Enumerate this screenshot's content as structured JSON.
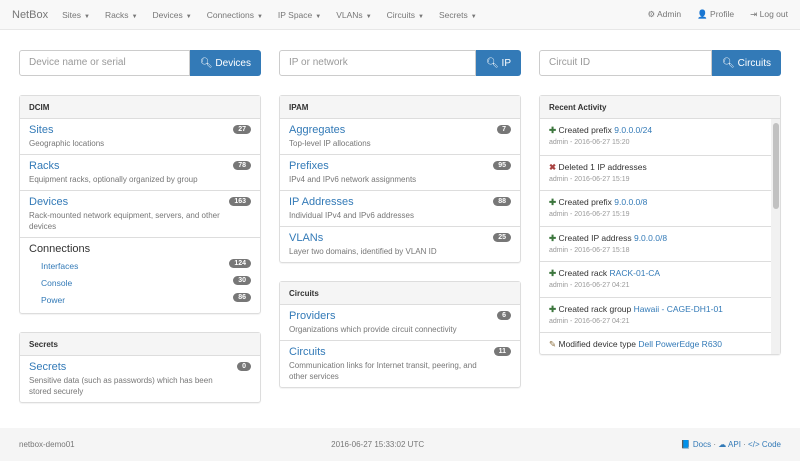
{
  "nav": {
    "brand": "NetBox",
    "items": [
      "Sites",
      "Racks",
      "Devices",
      "Connections",
      "IP Space",
      "VLANs",
      "Circuits",
      "Secrets"
    ],
    "right": [
      {
        "icon": "gear-icon",
        "glyph": "⚙",
        "label": "Admin"
      },
      {
        "icon": "user-icon",
        "glyph": "👤",
        "label": "Profile"
      },
      {
        "icon": "logout-icon",
        "glyph": "⇥",
        "label": "Log out"
      }
    ]
  },
  "searches": [
    {
      "placeholder": "Device name or serial",
      "button": "Devices"
    },
    {
      "placeholder": "IP or network",
      "button": "IP"
    },
    {
      "placeholder": "Circuit ID",
      "button": "Circuits"
    }
  ],
  "dcim": {
    "title": "DCIM",
    "items": [
      {
        "label": "Sites",
        "desc": "Geographic locations",
        "count": "27"
      },
      {
        "label": "Racks",
        "desc": "Equipment racks, optionally organized by group",
        "count": "78"
      },
      {
        "label": "Devices",
        "desc": "Rack-mounted network equipment, servers, and other devices",
        "count": "163"
      }
    ],
    "connections": {
      "label": "Connections",
      "items": [
        {
          "label": "Interfaces",
          "count": "124"
        },
        {
          "label": "Console",
          "count": "30"
        },
        {
          "label": "Power",
          "count": "86"
        }
      ]
    }
  },
  "secrets": {
    "title": "Secrets",
    "items": [
      {
        "label": "Secrets",
        "desc": "Sensitive data (such as passwords) which has been stored securely",
        "count": "0"
      }
    ]
  },
  "ipam": {
    "title": "IPAM",
    "items": [
      {
        "label": "Aggregates",
        "desc": "Top-level IP allocations",
        "count": "7"
      },
      {
        "label": "Prefixes",
        "desc": "IPv4 and IPv6 network assignments",
        "count": "95"
      },
      {
        "label": "IP Addresses",
        "desc": "Individual IPv4 and IPv6 addresses",
        "count": "88"
      },
      {
        "label": "VLANs",
        "desc": "Layer two domains, identified by VLAN ID",
        "count": "25"
      }
    ]
  },
  "circuits": {
    "title": "Circuits",
    "items": [
      {
        "label": "Providers",
        "desc": "Organizations which provide circuit connectivity",
        "count": "6"
      },
      {
        "label": "Circuits",
        "desc": "Communication links for Internet transit, peering, and other services",
        "count": "11"
      }
    ]
  },
  "activity": {
    "title": "Recent Activity",
    "items": [
      {
        "type": "plus",
        "text": "Created prefix",
        "link": "9.0.0.0/24",
        "meta": "admin - 2016-06-27 15:20"
      },
      {
        "type": "x",
        "text": "Deleted 1 IP addresses",
        "link": "",
        "meta": "admin - 2016-06-27 15:19"
      },
      {
        "type": "plus",
        "text": "Created prefix",
        "link": "9.0.0.0/8",
        "meta": "admin - 2016-06-27 15:19"
      },
      {
        "type": "plus",
        "text": "Created IP address",
        "link": "9.0.0.0/8",
        "meta": "admin - 2016-06-27 15:18"
      },
      {
        "type": "plus",
        "text": "Created rack",
        "link": "RACK-01-CA",
        "meta": "admin - 2016-06-27 04:21"
      },
      {
        "type": "plus",
        "text": "Created rack group",
        "link": "Hawaii - CAGE-DH1-01",
        "meta": "admin - 2016-06-27 04:21"
      },
      {
        "type": "pencil",
        "text": "Modified device type",
        "link": "Dell PowerEdge R630",
        "meta": ""
      }
    ]
  },
  "footer": {
    "host": "netbox-demo01",
    "time": "2016-06-27 15:33:02 UTC",
    "links": [
      {
        "icon": "book-icon",
        "glyph": "📘",
        "label": "Docs"
      },
      {
        "icon": "cloud-icon",
        "glyph": "☁",
        "label": "API"
      },
      {
        "icon": "code-icon",
        "glyph": "</>",
        "label": "Code"
      }
    ]
  }
}
